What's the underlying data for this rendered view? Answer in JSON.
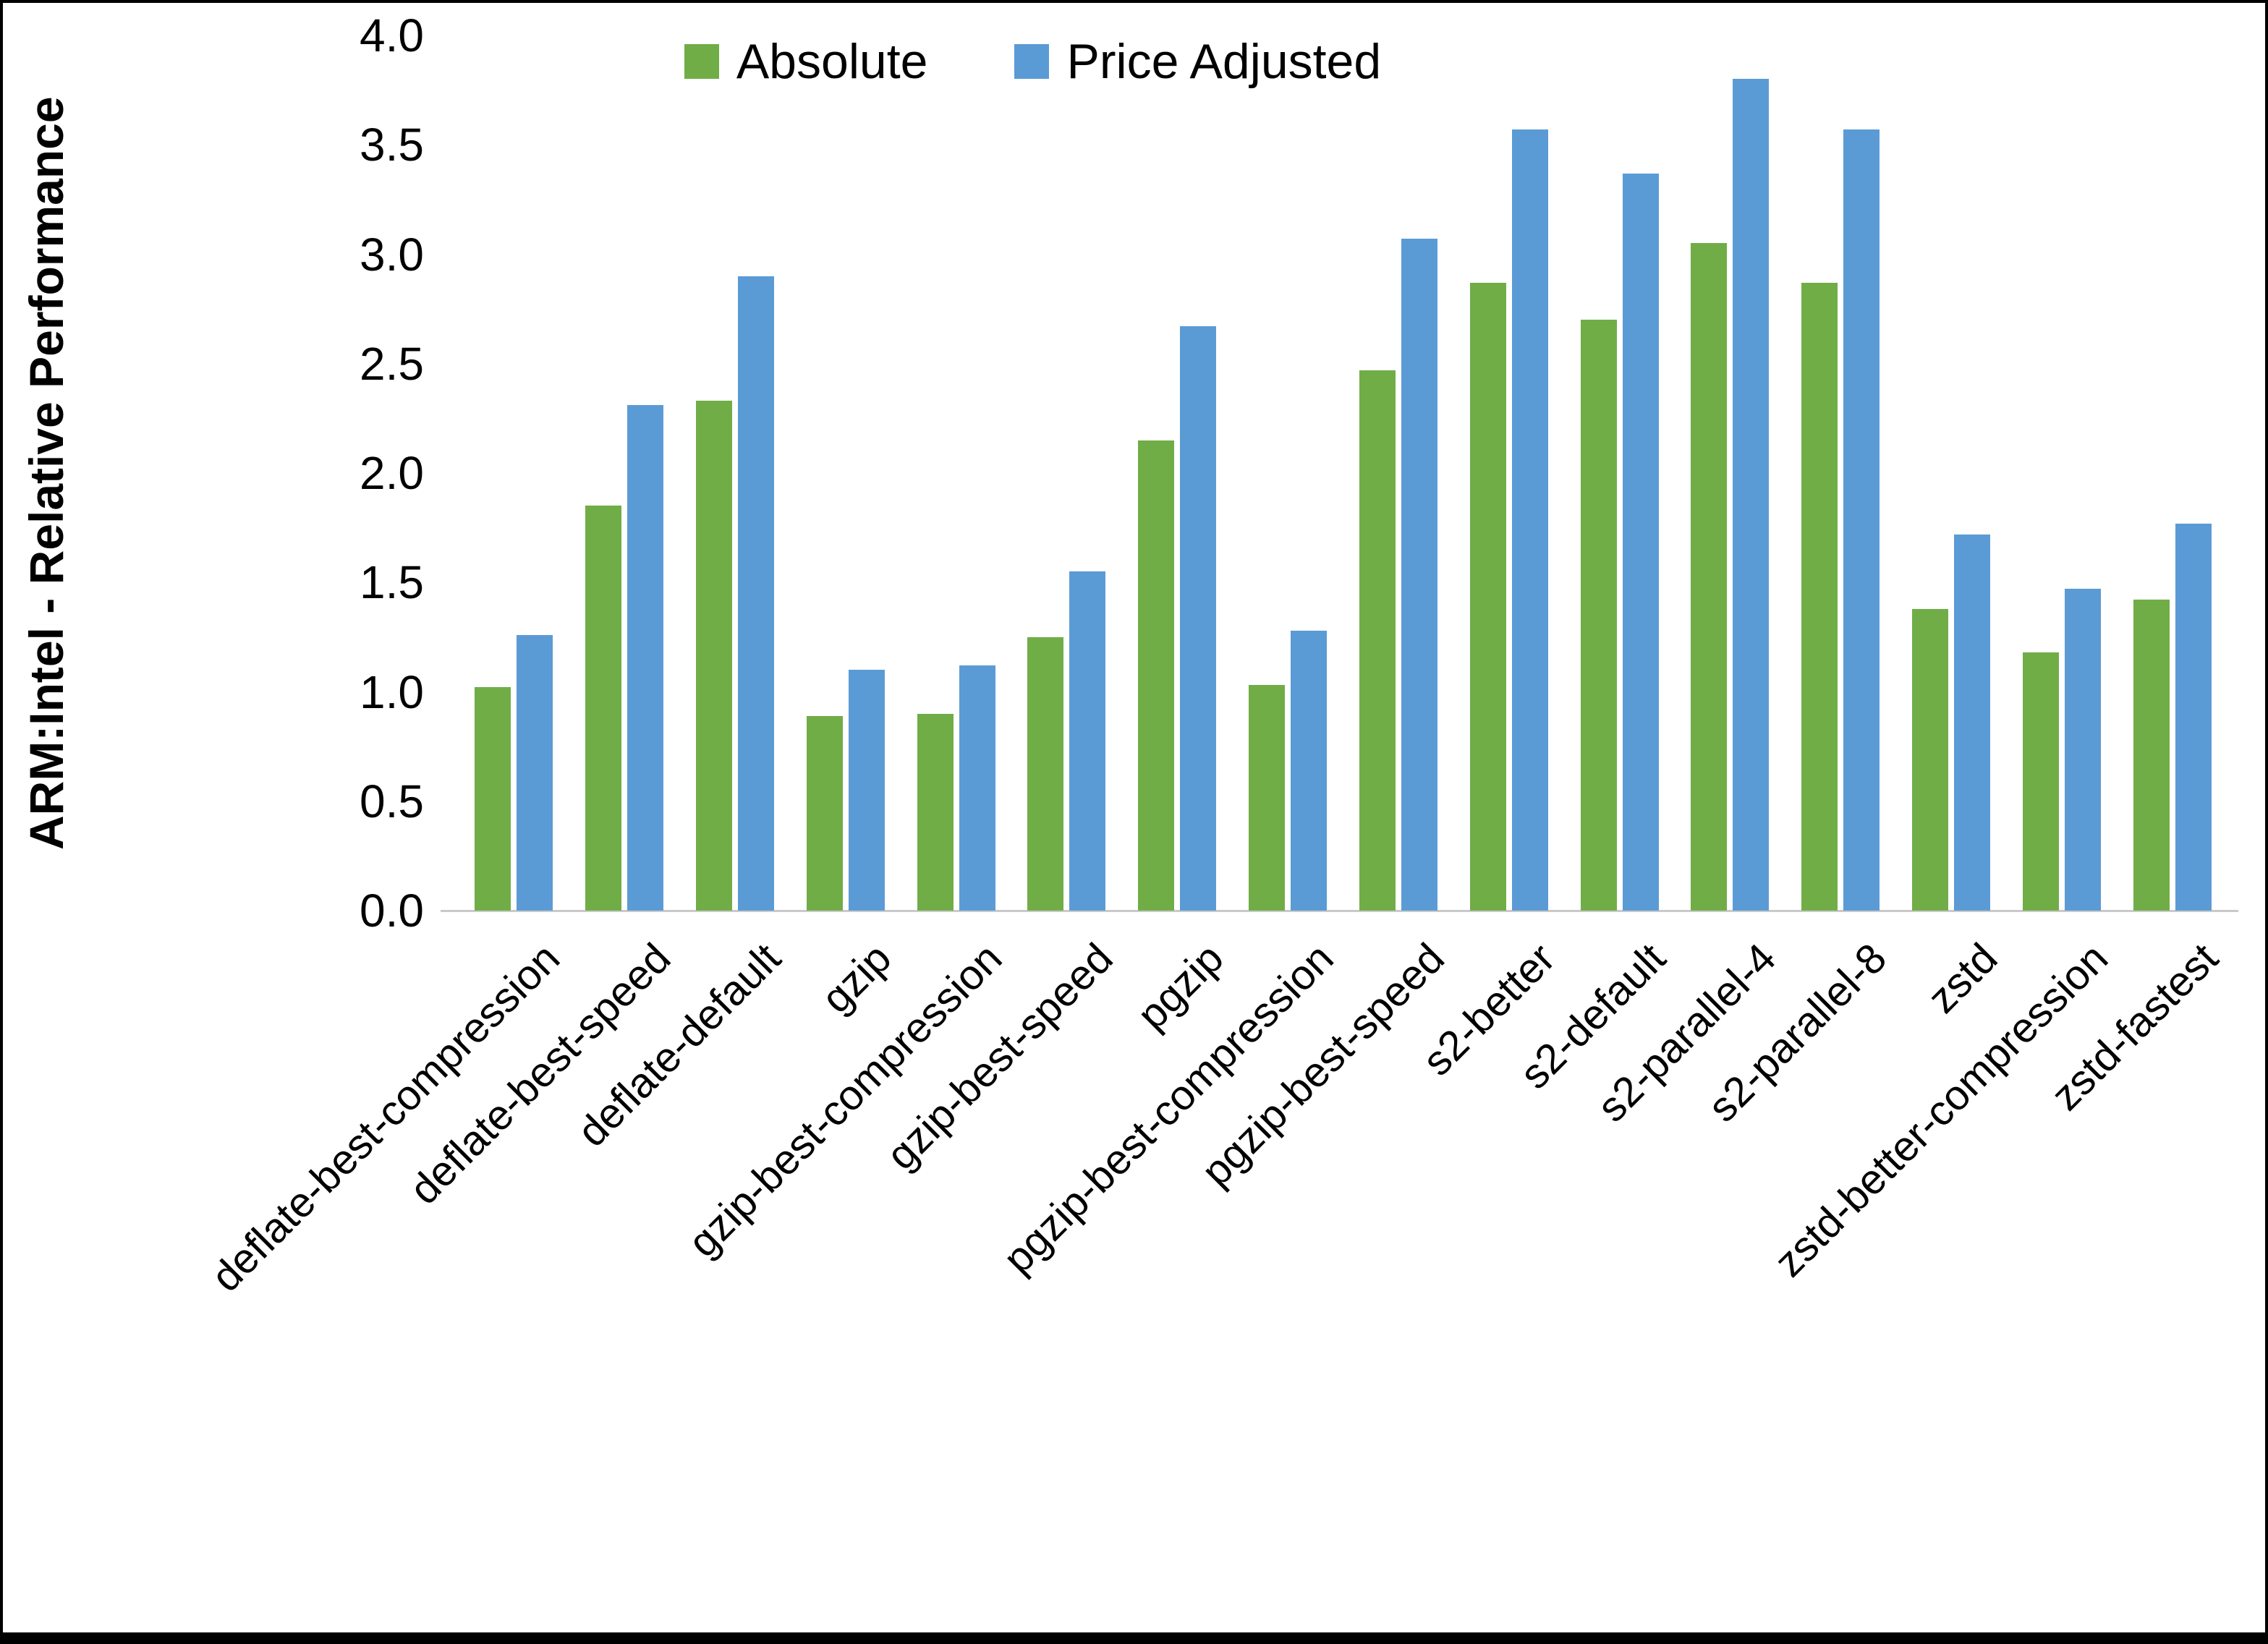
{
  "chart_data": {
    "type": "bar",
    "title": "",
    "ylabel": "ARM:Intel - Relative Performance",
    "xlabel": "",
    "ylim": [
      0.0,
      4.0
    ],
    "ytick_step": 0.5,
    "yticks": [
      "0.0",
      "0.5",
      "1.0",
      "1.5",
      "2.0",
      "2.5",
      "3.0",
      "3.5",
      "4.0"
    ],
    "grid": false,
    "legend_position": "top-center",
    "categories": [
      "deflate-best-compression",
      "deflate-best-speed",
      "deflate-default",
      "gzip",
      "gzip-best-compression",
      "gzip-best-speed",
      "pgzip",
      "pgzip-best-compression",
      "pgzip-best-speed",
      "s2-better",
      "s2-default",
      "s2-parallel-4",
      "s2-parallel-8",
      "zstd",
      "zstd-better-compression",
      "zstd-fastest"
    ],
    "series": [
      {
        "name": "Absolute",
        "color": "#70AD47",
        "values": [
          1.02,
          1.85,
          2.33,
          0.89,
          0.9,
          1.25,
          2.15,
          1.03,
          2.47,
          2.87,
          2.7,
          3.05,
          2.87,
          1.38,
          1.18,
          1.42
        ]
      },
      {
        "name": "Price Adjusted",
        "color": "#5B9BD5",
        "values": [
          1.26,
          2.31,
          2.9,
          1.1,
          1.12,
          1.55,
          2.67,
          1.28,
          3.07,
          3.57,
          3.37,
          3.8,
          3.57,
          1.72,
          1.47,
          1.77
        ]
      }
    ]
  }
}
